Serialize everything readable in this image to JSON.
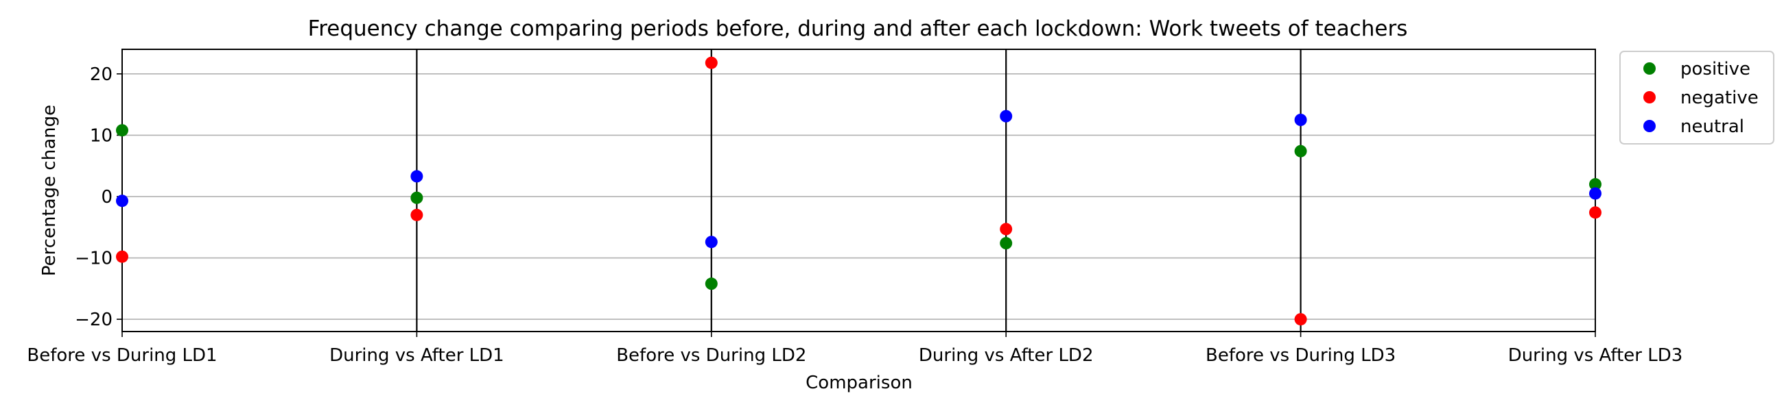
{
  "chart_data": {
    "type": "scatter",
    "title": "Frequency change comparing periods before, during and after each lockdown: Work tweets of teachers",
    "xlabel": "Comparison",
    "ylabel": "Percentage change",
    "categories": [
      "Before vs During LD1",
      "During vs After LD1",
      "Before vs During LD2",
      "During vs After LD2",
      "Before vs During LD3",
      "During vs After LD3"
    ],
    "ylim": [
      -22,
      24
    ],
    "yticks": [
      -20,
      -10,
      0,
      10,
      20
    ],
    "ytick_labels": [
      "−20",
      "−10",
      "0",
      "10",
      "20"
    ],
    "grid": "horizontal",
    "legend": "outside-top-right",
    "vlines_at": [
      "During vs After LD1",
      "Before vs During LD2",
      "During vs After LD2",
      "Before vs During LD3"
    ],
    "series": [
      {
        "name": "positive",
        "color": "#008000",
        "values": [
          10.8,
          -0.2,
          -14.2,
          -7.6,
          7.4,
          2.0
        ]
      },
      {
        "name": "negative",
        "color": "#ff0000",
        "values": [
          -9.8,
          -3.0,
          21.8,
          -5.3,
          -20.0,
          -2.6
        ]
      },
      {
        "name": "neutral",
        "color": "#0000ff",
        "values": [
          -0.7,
          3.3,
          -7.4,
          13.1,
          12.5,
          0.5
        ]
      }
    ]
  }
}
